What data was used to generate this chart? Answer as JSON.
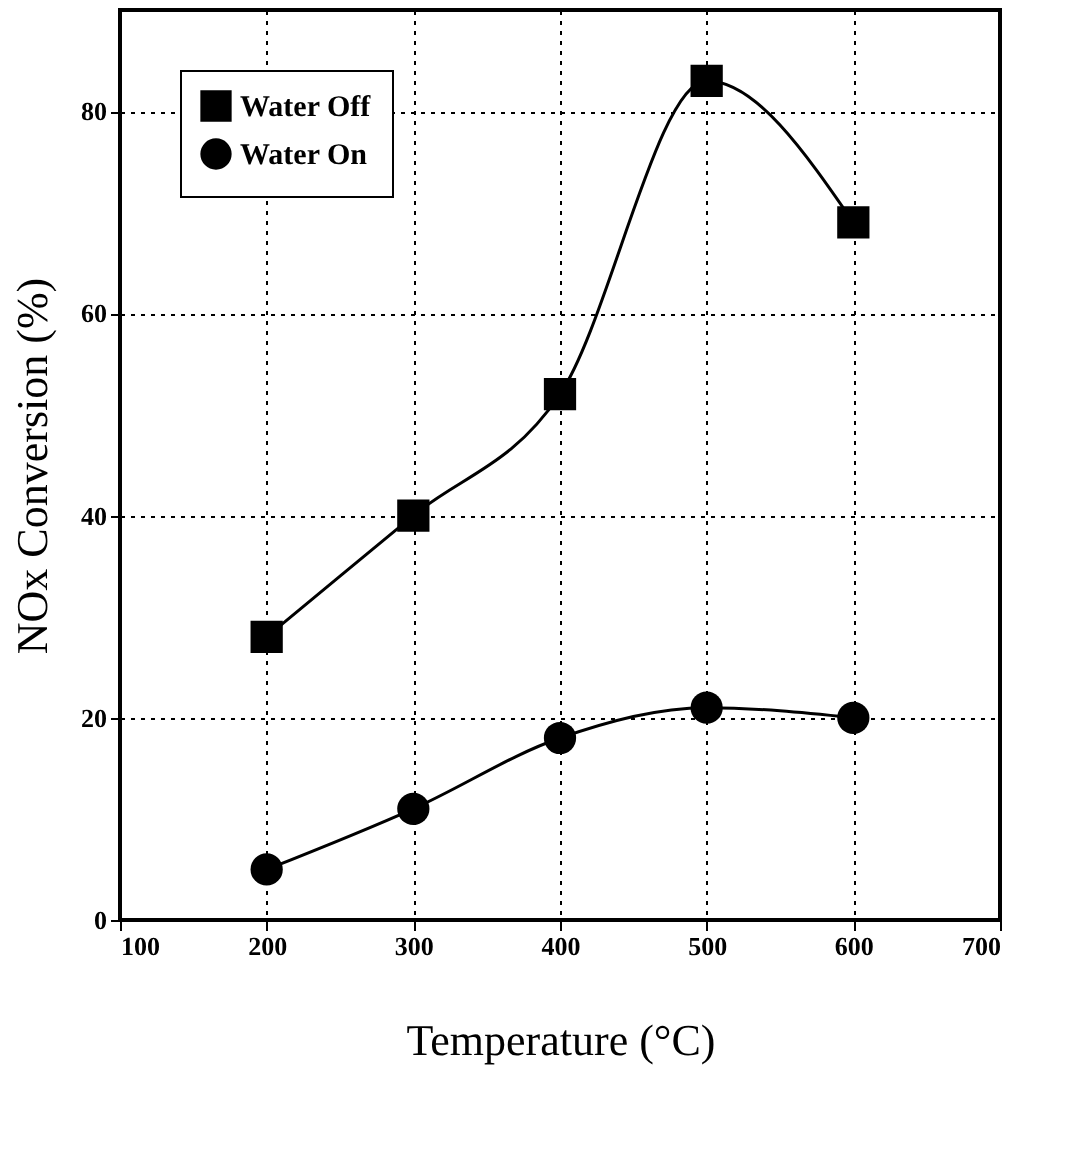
{
  "chart_data": {
    "type": "line",
    "xlabel": "Temperature (°C)",
    "ylabel": "NOx Conversion (%)",
    "x": [
      200,
      300,
      400,
      500,
      600
    ],
    "series": [
      {
        "name": "Water Off",
        "color": "#000000",
        "marker": "square",
        "values": [
          28,
          40,
          52,
          83,
          69
        ]
      },
      {
        "name": "Water On",
        "color": "#000000",
        "marker": "circle",
        "values": [
          5,
          11,
          18,
          21,
          20
        ]
      }
    ],
    "xlim": [
      100,
      700
    ],
    "xticks": [
      100,
      200,
      300,
      400,
      500,
      600,
      700
    ],
    "ylim": [
      0,
      90
    ],
    "yticks": [
      0,
      20,
      40,
      60,
      80
    ],
    "grid": true,
    "legend": "top left",
    "line_style": "solid"
  }
}
